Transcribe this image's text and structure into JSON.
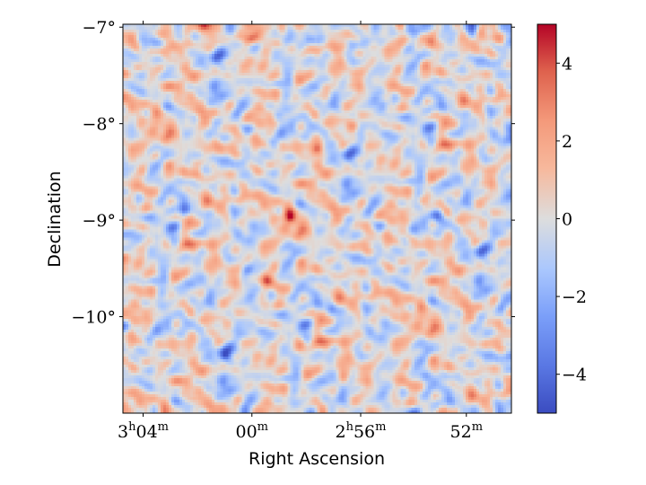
{
  "chart_data": {
    "type": "heatmap",
    "title": "",
    "xlabel": "Right Ascension",
    "ylabel": "Declination",
    "x_ticks": [
      {
        "hours": "3",
        "minutes": "04"
      },
      {
        "hours": "",
        "minutes": "00"
      },
      {
        "hours": "2",
        "minutes": "56"
      },
      {
        "hours": "",
        "minutes": "52"
      }
    ],
    "y_ticks": [
      "−7°",
      "−8°",
      "−9°",
      "−10°"
    ],
    "y_tick_values": [
      -7,
      -8,
      -9,
      -10
    ],
    "ylim": [
      -11.0,
      -6.97
    ],
    "colorbar": {
      "colormap": "coolwarm",
      "range": [
        -5,
        5
      ],
      "ticks": [
        {
          "value": 4,
          "label": "4"
        },
        {
          "value": 2,
          "label": "2"
        },
        {
          "value": 0,
          "label": "0"
        },
        {
          "value": -2,
          "label": "−2"
        },
        {
          "value": -4,
          "label": "−4"
        }
      ],
      "colors": [
        "#3b4cc0",
        "#dddddd",
        "#b40426"
      ]
    },
    "grid": false,
    "hotspots": [
      {
        "ra_min": 0.0,
        "dec": -8.25,
        "value": 3.6
      },
      {
        "ra_min": -1.8,
        "dec": -8.95,
        "value": 4.6
      },
      {
        "ra_min": -3.4,
        "dec": -9.6,
        "value": 3.3
      },
      {
        "ra_min": 0.5,
        "dec": -7.6,
        "value": 2.7
      },
      {
        "ra_min": -1.2,
        "dec": -10.3,
        "value": 2.8
      },
      {
        "ra_min": 1.6,
        "dec": -10.6,
        "value": 2.6
      },
      {
        "ra_min": -6.6,
        "dec": -8.2,
        "value": 2.8
      },
      {
        "ra_min": -7.9,
        "dec": -8.5,
        "value": 2.5
      },
      {
        "ra_min": 5.8,
        "dec": -9.15,
        "value": 2.4
      },
      {
        "ra_min": 5.0,
        "dec": -10.0,
        "value": 2.2
      },
      {
        "ra_min": 6.8,
        "dec": -8.8,
        "value": 2.3
      },
      {
        "ra_min": 3.2,
        "dec": -8.1,
        "value": 2.2
      },
      {
        "ra_min": -10.4,
        "dec": -8.3,
        "value": 2.3
      },
      {
        "ra_min": -5.0,
        "dec": -7.4,
        "value": 2.0
      },
      {
        "ra_min": 2.2,
        "dec": -8.0,
        "value": 1.9
      },
      {
        "ra_min": 6.4,
        "dec": -7.2,
        "value": 1.8
      }
    ],
    "coldspots": [
      {
        "ra_min": 7.6,
        "dec": -8.95,
        "value": -3.3
      },
      {
        "ra_min": -8.7,
        "dec": -8.9,
        "value": -3.0
      },
      {
        "ra_min": -4.6,
        "dec": -9.5,
        "value": -2.6
      },
      {
        "ra_min": 4.2,
        "dec": -7.8,
        "value": -2.5
      },
      {
        "ra_min": -6.0,
        "dec": -10.4,
        "value": -2.4
      },
      {
        "ra_min": 0.9,
        "dec": -9.9,
        "value": -2.6
      },
      {
        "ra_min": -2.6,
        "dec": -7.9,
        "value": -2.2
      },
      {
        "ra_min": 7.0,
        "dec": -10.6,
        "value": -2.1
      }
    ]
  }
}
